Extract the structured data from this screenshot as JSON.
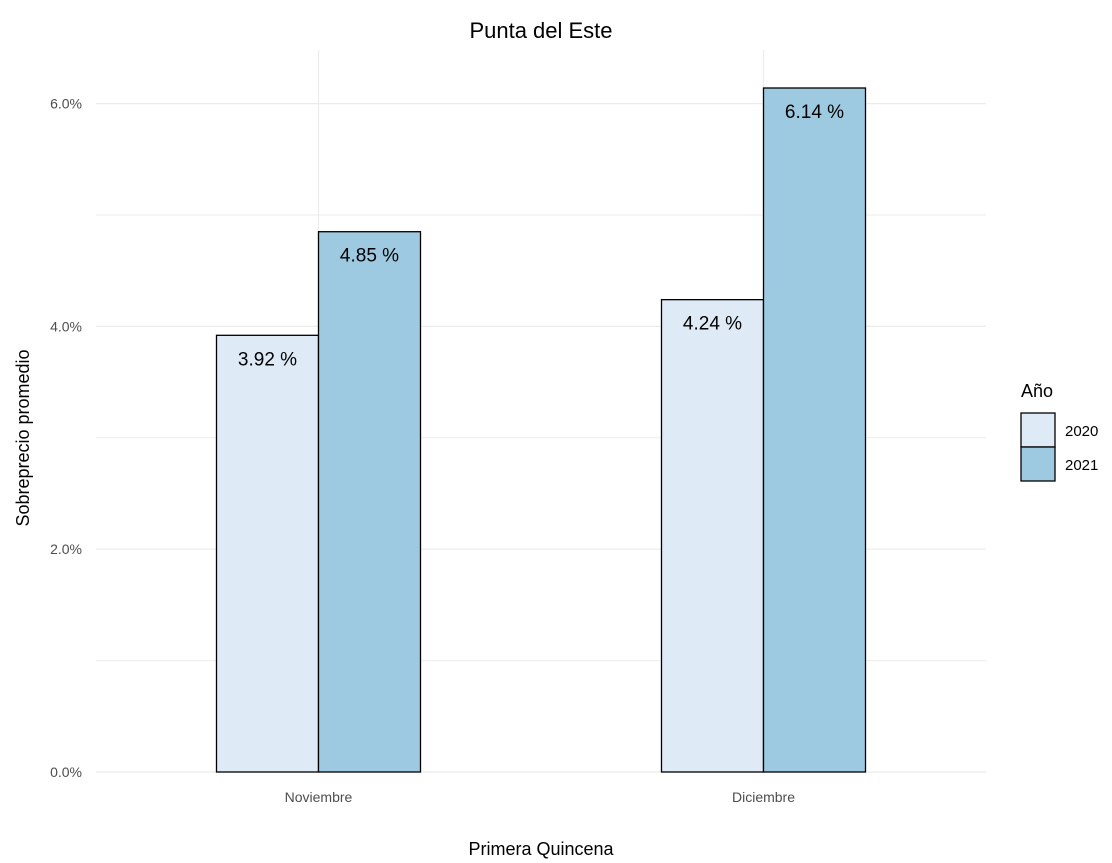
{
  "chart_data": {
    "type": "bar",
    "title": "Punta del Este",
    "xlabel": "Primera Quincena",
    "ylabel": "Sobreprecio promedio",
    "categories": [
      "Noviembre",
      "Diciembre"
    ],
    "series": [
      {
        "name": "2020",
        "values": [
          3.92,
          4.24
        ],
        "labels": [
          "3.92 %",
          "4.24 %"
        ],
        "color": "#deebf7"
      },
      {
        "name": "2021",
        "values": [
          4.85,
          6.14
        ],
        "labels": [
          "4.85 %",
          "6.14 %"
        ],
        "color": "#9ecae1"
      }
    ],
    "ylim": [
      0,
      6.14
    ],
    "yticks": [
      0,
      2,
      4,
      6
    ],
    "ytick_labels": [
      "0.0%",
      "2.0%",
      "4.0%",
      "6.0%"
    ],
    "grid": true,
    "legend": {
      "title": "Año",
      "position": "right"
    },
    "bar_outline_color": "#000000",
    "grid_color": "#ebebeb"
  }
}
